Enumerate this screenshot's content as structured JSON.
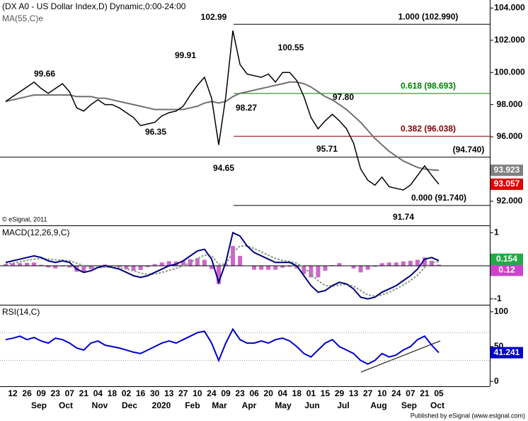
{
  "chart_data": {
    "type": "line",
    "title": "(DX A0 - US Dollar Index,D) Dynamic,0:00-24:00",
    "copyright": "© eSignal, 2011",
    "footer": "Published by eSignal (www.esignal.com)",
    "categories": [
      null,
      "12",
      null,
      "26",
      null,
      "09",
      null,
      "23",
      null,
      "07",
      null,
      "21",
      null,
      "04",
      null,
      "18",
      null,
      "02",
      null,
      "16",
      null,
      "30",
      null,
      "13",
      null,
      "27",
      null,
      "10",
      null,
      "24",
      null,
      "09",
      null,
      "23",
      null,
      "06",
      null,
      "20",
      null,
      "04",
      null,
      "18",
      null,
      "01",
      null,
      "15",
      null,
      "29",
      null,
      "13",
      null,
      "27",
      null,
      "10",
      null,
      "24",
      null,
      "07",
      null,
      "21",
      null,
      "05"
    ],
    "months": [
      "Sep",
      "Oct",
      "Nov",
      "Dec",
      "2020",
      "Feb",
      "Mar",
      "Apr",
      "May",
      "Jun",
      "Jul",
      "Aug",
      "Sep",
      "Oct"
    ],
    "price": {
      "ylim": [
        90.5,
        104.5
      ],
      "yticks": [
        {
          "value": 104,
          "label": "104.000"
        },
        {
          "value": 102,
          "label": "102.000"
        },
        {
          "value": 100,
          "label": "100.000"
        },
        {
          "value": 98,
          "label": "98.000"
        },
        {
          "value": 96,
          "label": "96.000"
        },
        {
          "value": 92,
          "label": "92.000"
        }
      ],
      "series": [
        {
          "name": "MA(55,C)e",
          "color": "#707070",
          "current_label": "93.923",
          "values": [
            98.2,
            98.3,
            98.4,
            98.5,
            98.6,
            98.6,
            98.6,
            98.6,
            98.6,
            98.6,
            98.5,
            98.5,
            98.5,
            98.4,
            98.4,
            98.3,
            98.2,
            98.1,
            98.0,
            97.9,
            97.8,
            97.7,
            97.7,
            97.7,
            97.7,
            97.7,
            97.8,
            97.9,
            98.1,
            98.2,
            98.1,
            98.2,
            98.5,
            98.7,
            98.8,
            98.9,
            99.0,
            99.1,
            99.2,
            99.3,
            99.4,
            99.4,
            99.3,
            99.1,
            98.8,
            98.5,
            98.3,
            98.0,
            97.7,
            97.3,
            96.9,
            96.4,
            95.9,
            95.5,
            95.1,
            94.8,
            94.5,
            94.3,
            94.1,
            94.0,
            93.95,
            93.923
          ]
        },
        {
          "name": null,
          "color": "#000000",
          "current_label": "93.057",
          "current_color": "#e00000",
          "values": [
            98.2,
            98.5,
            98.8,
            99.1,
            99.4,
            99.0,
            98.7,
            99.0,
            99.3,
            98.8,
            97.8,
            97.6,
            98.0,
            98.3,
            98.0,
            98.0,
            97.8,
            97.5,
            97.2,
            96.7,
            96.8,
            96.9,
            97.3,
            97.5,
            97.6,
            97.9,
            98.6,
            99.2,
            99.7,
            98.4,
            95.5,
            98.5,
            102.6,
            100.5,
            99.9,
            99.8,
            99.7,
            99.9,
            99.4,
            100.0,
            100.0,
            99.5,
            98.5,
            97.2,
            96.5,
            97.0,
            97.4,
            97.0,
            96.5,
            95.6,
            94.0,
            93.3,
            93.0,
            93.5,
            92.9,
            92.8,
            92.7,
            93.0,
            93.6,
            94.2,
            93.6,
            93.057
          ]
        }
      ],
      "levels": [
        {
          "label": "1.000 (102.990)",
          "value": 102.99,
          "color": "#000000"
        },
        {
          "label": "0.618 (98.693)",
          "value": 98.693,
          "color": "#008000"
        },
        {
          "label": "0.382 (96.038)",
          "value": 96.038,
          "color": "#8b0000"
        },
        {
          "label": "0.000 (91.740)",
          "value": 91.74,
          "color": "#000000"
        },
        {
          "label": "(94.740)",
          "value": 94.74,
          "color": "#000000"
        }
      ],
      "annotations": [
        "102.99",
        "99.91",
        "99.66",
        "100.55",
        "97.80",
        "98.27",
        "96.35",
        "95.71",
        "94.65",
        "91.74"
      ]
    },
    "macd": {
      "title": "MACD(12,26,9,C)",
      "ylim": [
        -1.2,
        1.2
      ],
      "yticks": [
        1,
        -1
      ],
      "zero": 0,
      "series": [
        {
          "name": "MACD",
          "color": "#000080",
          "current_label": "0.154",
          "current_color": "#22aa44",
          "values": [
            0.1,
            0.15,
            0.2,
            0.25,
            0.3,
            0.25,
            0.15,
            0.1,
            0.15,
            0.1,
            -0.1,
            -0.2,
            -0.15,
            -0.05,
            0,
            -0.05,
            -0.1,
            -0.2,
            -0.3,
            -0.35,
            -0.3,
            -0.2,
            -0.1,
            0,
            0.05,
            0.15,
            0.3,
            0.45,
            0.5,
            0.2,
            -0.5,
            0.1,
            1.0,
            0.9,
            0.6,
            0.4,
            0.3,
            0.2,
            0.1,
            0.1,
            0.1,
            0,
            -0.3,
            -0.6,
            -0.8,
            -0.75,
            -0.6,
            -0.5,
            -0.55,
            -0.7,
            -0.95,
            -1.0,
            -0.95,
            -0.8,
            -0.7,
            -0.6,
            -0.45,
            -0.3,
            -0.1,
            0.2,
            0.25,
            0.154
          ]
        },
        {
          "name": "Signal",
          "color": "#8a9a8a",
          "current_label": "0.12",
          "current_color": "#cc44cc",
          "values": [
            0.05,
            0.08,
            0.12,
            0.16,
            0.2,
            0.22,
            0.2,
            0.18,
            0.17,
            0.15,
            0.08,
            0,
            -0.05,
            -0.06,
            -0.04,
            -0.04,
            -0.06,
            -0.1,
            -0.15,
            -0.22,
            -0.26,
            -0.25,
            -0.2,
            -0.14,
            -0.08,
            0,
            0.1,
            0.22,
            0.32,
            0.3,
            0.05,
            0.05,
            0.4,
            0.6,
            0.6,
            0.52,
            0.42,
            0.32,
            0.22,
            0.16,
            0.13,
            0.08,
            -0.05,
            -0.25,
            -0.45,
            -0.6,
            -0.62,
            -0.58,
            -0.56,
            -0.62,
            -0.75,
            -0.88,
            -0.92,
            -0.88,
            -0.8,
            -0.7,
            -0.58,
            -0.45,
            -0.28,
            -0.05,
            0.1,
            0.12
          ]
        }
      ],
      "histogram": {
        "color": "#cc66cc",
        "values": [
          0.05,
          0.07,
          0.08,
          0.09,
          0.1,
          0.03,
          -0.05,
          -0.08,
          -0.02,
          -0.05,
          -0.18,
          -0.2,
          -0.1,
          0.01,
          0.04,
          -0.01,
          -0.04,
          -0.1,
          -0.15,
          -0.13,
          -0.04,
          0.05,
          0.1,
          0.14,
          0.13,
          0.15,
          0.2,
          0.23,
          0.18,
          -0.1,
          -0.55,
          0.05,
          0.6,
          0.3,
          0,
          -0.12,
          -0.12,
          -0.12,
          -0.12,
          -0.06,
          -0.03,
          -0.08,
          -0.25,
          -0.35,
          -0.35,
          -0.15,
          0.02,
          0.08,
          0.01,
          -0.08,
          -0.2,
          -0.12,
          -0.03,
          0.08,
          0.1,
          0.1,
          0.13,
          0.15,
          0.18,
          0.25,
          0.15,
          0.034
        ]
      }
    },
    "rsi": {
      "title": "RSI(14,C)",
      "ylim": [
        -7,
        108
      ],
      "yticks": [
        100,
        50,
        0
      ],
      "levels": [
        70,
        30
      ],
      "series": [
        {
          "name": "RSI",
          "color": "#0000cc",
          "current_label": "41.241",
          "current_color": "#0000cc",
          "values": [
            60,
            62,
            65,
            60,
            63,
            58,
            55,
            62,
            60,
            55,
            48,
            45,
            55,
            58,
            52,
            50,
            48,
            45,
            42,
            40,
            45,
            50,
            55,
            58,
            55,
            60,
            65,
            70,
            72,
            55,
            30,
            55,
            75,
            60,
            55,
            55,
            58,
            55,
            60,
            62,
            58,
            50,
            40,
            35,
            45,
            55,
            60,
            50,
            45,
            40,
            30,
            25,
            30,
            40,
            35,
            38,
            45,
            50,
            60,
            65,
            52,
            41.241
          ]
        }
      ]
    }
  }
}
